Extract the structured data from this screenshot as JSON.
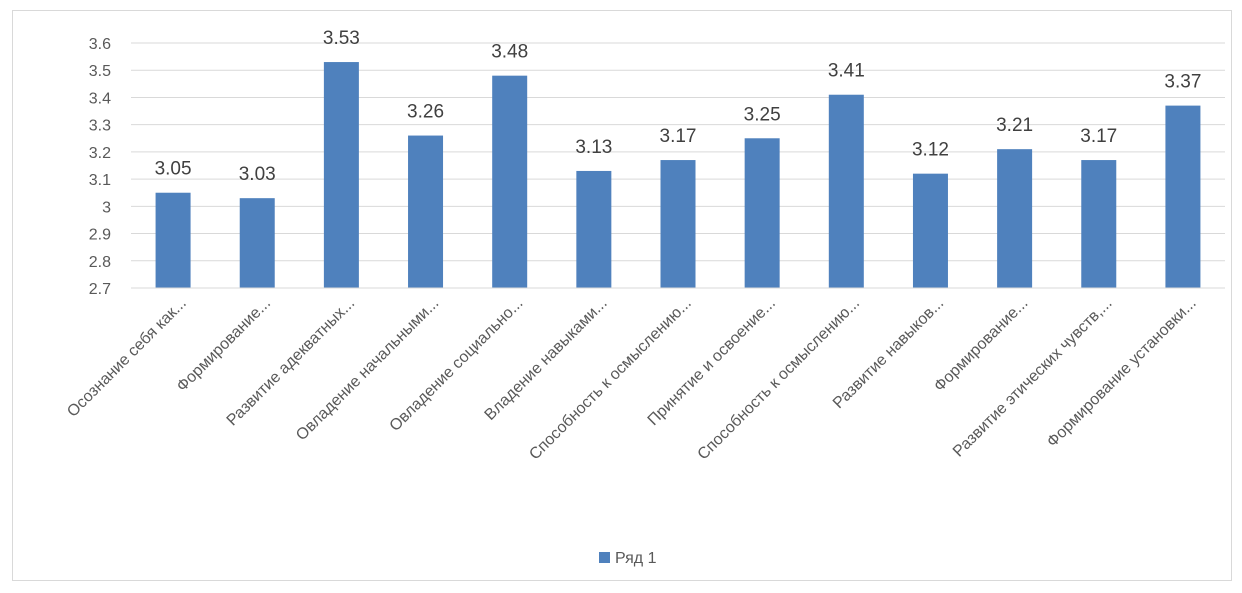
{
  "chart_data": {
    "type": "bar",
    "categories": [
      "Осознание себя как...",
      "Формирование...",
      "Развитие адекватных...",
      "Овладение начальными...",
      "Овладение социально...",
      "Владение навыками...",
      "Способность к осмыслению...",
      "Принятие и освоение...",
      "Способность к осмыслению...",
      "Развитие навыков...",
      "Формирование...",
      "Развитие этических чувств,...",
      "Формирование установки..."
    ],
    "series": [
      {
        "name": "Ряд 1",
        "values": [
          3.05,
          3.03,
          3.53,
          3.26,
          3.48,
          3.13,
          3.17,
          3.25,
          3.41,
          3.12,
          3.21,
          3.17,
          3.37
        ],
        "labels": [
          "3.05",
          "3.03",
          "3.53",
          "3.26",
          "3.48",
          "3.13",
          "3.17",
          "3.25",
          "3.41",
          "3.12",
          "3.21",
          "3.17",
          "3.37"
        ]
      }
    ],
    "yticks": [
      "3.6",
      "3.5",
      "3.4",
      "3.3",
      "3.2",
      "3.1",
      "3",
      "2.9",
      "2.8",
      "2.7"
    ],
    "ytick_values": [
      3.6,
      3.5,
      3.4,
      3.3,
      3.2,
      3.1,
      3.0,
      2.9,
      2.8,
      2.7
    ],
    "ylim": [
      2.7,
      3.6
    ],
    "grid": true,
    "legend_position": "bottom",
    "colors": {
      "bar": "#4f81bd",
      "grid": "#d9d9d9",
      "text": "#595959"
    }
  }
}
